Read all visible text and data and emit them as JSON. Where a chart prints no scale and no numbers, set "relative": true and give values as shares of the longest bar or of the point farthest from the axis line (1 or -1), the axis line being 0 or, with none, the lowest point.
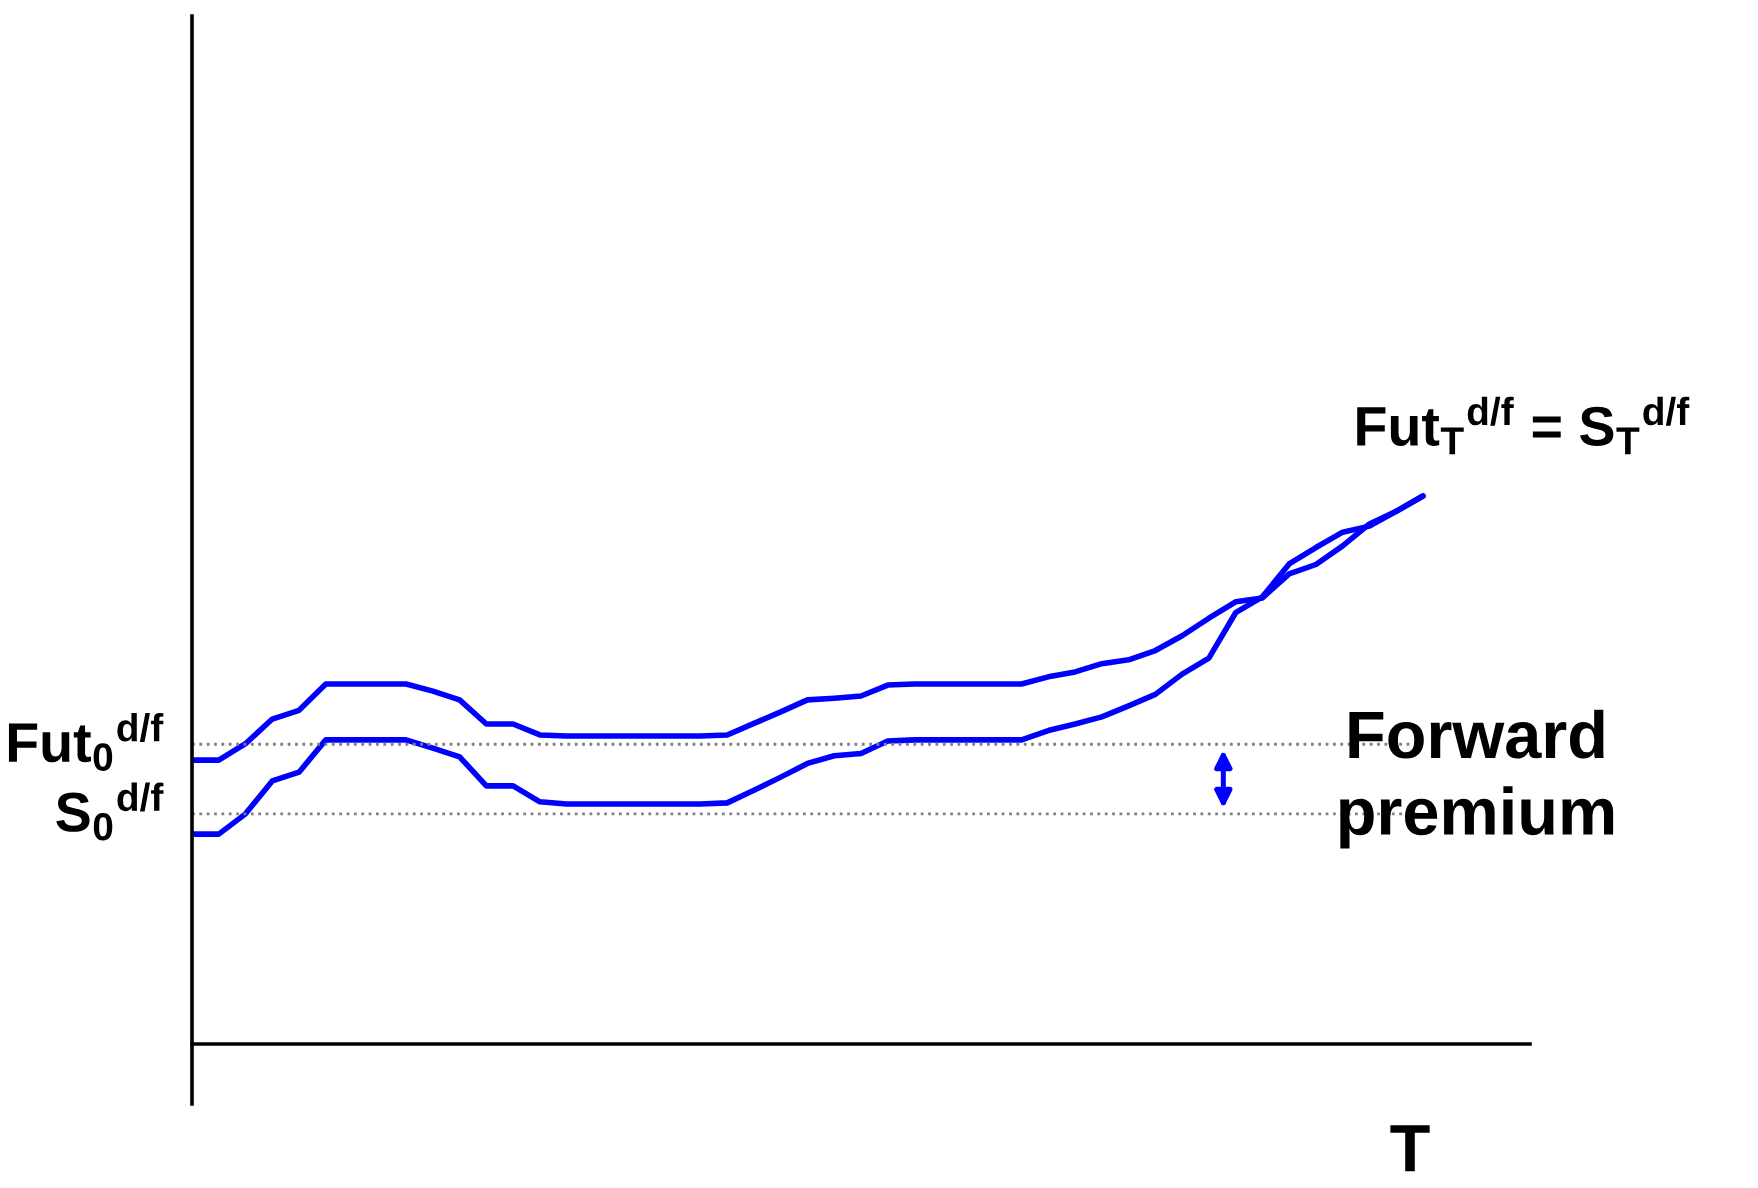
{
  "chart_data": {
    "type": "line",
    "relative": true,
    "xlabel": "T",
    "line_style": "solid",
    "categories": [
      null,
      null,
      null,
      null,
      null,
      null,
      null,
      null,
      null,
      null,
      null,
      null,
      null,
      null,
      null,
      null,
      null,
      null,
      null,
      null,
      null,
      null,
      null,
      null,
      null,
      null,
      null,
      null,
      null,
      null,
      null,
      null,
      null,
      null,
      null,
      null,
      null,
      null,
      null,
      null,
      null,
      null,
      null,
      null,
      null,
      null,
      null
    ],
    "series": [
      {
        "color": "#0000ff",
        "values": [
          0.518,
          0.518,
          0.548,
          0.593,
          0.609,
          0.657,
          0.657,
          0.657,
          0.657,
          0.644,
          0.628,
          0.584,
          0.584,
          0.564,
          0.562,
          0.562,
          0.562,
          0.562,
          0.562,
          0.562,
          0.564,
          0.585,
          0.606,
          0.628,
          0.631,
          0.635,
          0.655,
          0.657,
          0.657,
          0.657,
          0.657,
          0.657,
          0.67,
          0.679,
          0.694,
          0.701,
          0.718,
          0.745,
          0.777,
          0.807,
          0.814,
          0.858,
          0.875,
          0.909,
          0.949,
          0.972,
          1.0
        ]
      },
      {
        "color": "#0000ff",
        "values": [
          0.383,
          0.383,
          0.42,
          0.48,
          0.496,
          0.555,
          0.555,
          0.555,
          0.555,
          0.54,
          0.524,
          0.471,
          0.471,
          0.442,
          0.438,
          0.438,
          0.438,
          0.438,
          0.438,
          0.438,
          0.44,
          0.463,
          0.487,
          0.512,
          0.526,
          0.53,
          0.553,
          0.555,
          0.555,
          0.555,
          0.555,
          0.555,
          0.572,
          0.584,
          0.597,
          0.617,
          0.638,
          0.675,
          0.704,
          0.787,
          0.816,
          0.876,
          0.906,
          0.934,
          0.945,
          0.972,
          1.0
        ]
      }
    ],
    "ref_lines": [
      {
        "axis": "y",
        "value": 0.547,
        "label": "Fut$_{0}$$^{d/f}$",
        "color": "#808080",
        "line_style": "dotted"
      },
      {
        "axis": "y",
        "value": 0.42,
        "label": "S$_{0}$$^{d/f}$",
        "color": "#808080",
        "line_style": "dotted"
      }
    ],
    "annotations": [
      "Fut$_{T}$$^{d/f}$ = S$_{T}$$^{d/f}$",
      "Forward premium"
    ]
  }
}
